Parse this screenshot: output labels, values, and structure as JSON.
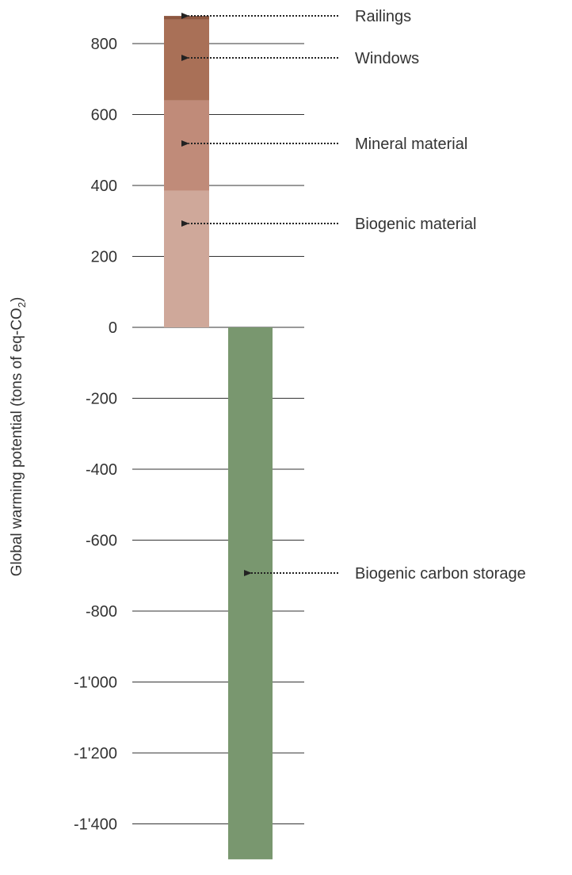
{
  "chart_data": {
    "type": "bar",
    "stacked": true,
    "ylabel_main": "Global warming potential (tons of eq-CO",
    "ylabel_subscript": "2",
    "ylabel_close": ")",
    "ylim": [
      -1500,
      880
    ],
    "yticks": [
      {
        "value": 800,
        "label": "800"
      },
      {
        "value": 600,
        "label": "600"
      },
      {
        "value": 400,
        "label": "400"
      },
      {
        "value": 200,
        "label": "200"
      },
      {
        "value": 0,
        "label": "0"
      },
      {
        "value": -200,
        "label": "-200"
      },
      {
        "value": -400,
        "label": "-400"
      },
      {
        "value": -600,
        "label": "-600"
      },
      {
        "value": -800,
        "label": "-800"
      },
      {
        "value": -1000,
        "label": "-1'000"
      },
      {
        "value": -1200,
        "label": "-1'200"
      },
      {
        "value": -1400,
        "label": "-1'400"
      }
    ],
    "grid": true,
    "bars": [
      {
        "id": "emissions",
        "segments": [
          {
            "name": "Biogenic material",
            "value": 385,
            "color": "#cfa89a"
          },
          {
            "name": "Mineral material",
            "value": 255,
            "color": "#c08b79"
          },
          {
            "name": "Windows",
            "value": 228,
            "color": "#a97057"
          },
          {
            "name": "Railings",
            "value": 10,
            "color": "#8d5740"
          }
        ]
      },
      {
        "id": "storage",
        "segments": [
          {
            "name": "Biogenic carbon storage",
            "value": -1500,
            "color": "#79976f"
          }
        ]
      }
    ],
    "annotations": [
      "Railings",
      "Windows",
      "Mineral material",
      "Biogenic material",
      "Biogenic carbon storage"
    ]
  }
}
